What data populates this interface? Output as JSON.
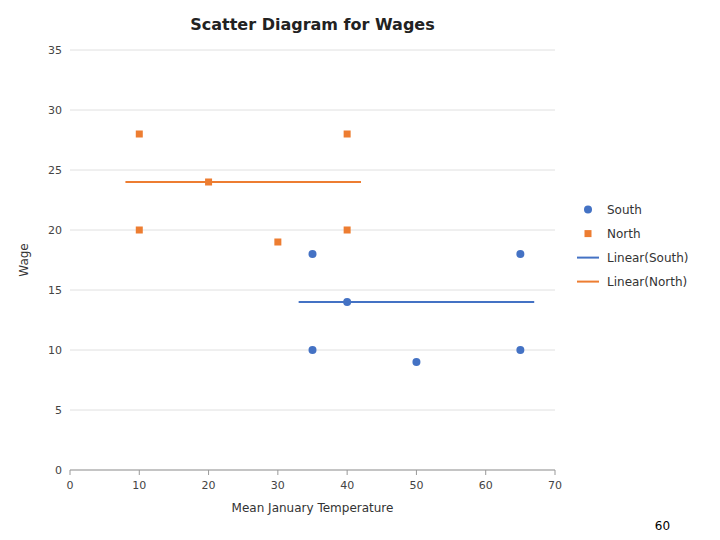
{
  "chart_data": {
    "type": "scatter",
    "title": "Scatter Diagram for Wages",
    "xlabel": "Mean January Temperature",
    "ylabel": "Wage",
    "xlim": [
      0,
      70
    ],
    "ylim": [
      0,
      35
    ],
    "xticks": [
      0,
      10,
      20,
      30,
      40,
      50,
      60,
      70
    ],
    "yticks": [
      0,
      5,
      10,
      15,
      20,
      25,
      30,
      35
    ],
    "grid": "y",
    "legend": "right",
    "annotations": [
      "60"
    ],
    "series": [
      {
        "name": "South",
        "type": "scatter",
        "marker": "circle",
        "color": "#4472c4",
        "x": [
          35,
          35,
          40,
          50,
          65,
          65
        ],
        "values": [
          18,
          10,
          14,
          9,
          18,
          10
        ]
      },
      {
        "name": "North",
        "type": "scatter",
        "marker": "square",
        "color": "#ed7d31",
        "x": [
          10,
          10,
          20,
          30,
          40,
          40
        ],
        "values": [
          28,
          20,
          24,
          19,
          28,
          20
        ]
      },
      {
        "name": "Linear(South)",
        "type": "line",
        "color": "#4472c4",
        "x": [
          33,
          67
        ],
        "values": [
          14,
          14
        ]
      },
      {
        "name": "Linear(North)",
        "type": "line",
        "color": "#ed7d31",
        "x": [
          8,
          42
        ],
        "values": [
          24,
          24
        ]
      }
    ]
  }
}
